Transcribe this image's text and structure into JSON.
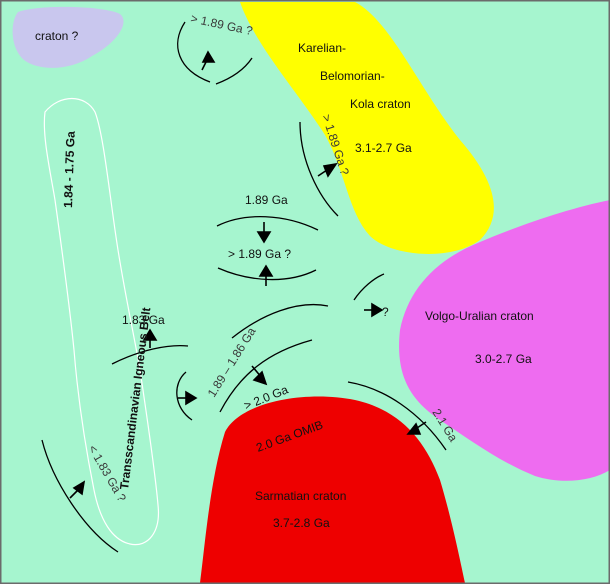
{
  "colors": {
    "background": "#a6f5cf",
    "frame": "#6b6b6b",
    "unknown_craton": "#c9c7ee",
    "karelian": "#ffff00",
    "volgo_uralian": "#ee6cf0",
    "sarmatian": "#ee0000",
    "tib_outline": "#ffffff",
    "text": "#111111"
  },
  "regions": {
    "unknown_craton": {
      "label": "craton ?"
    },
    "karelian": {
      "line1": "Karelian-",
      "line2": "Belomorian-",
      "line3": "Kola craton",
      "age": "3.1-2.7 Ga"
    },
    "volgo_uralian": {
      "name": "Volgo-Uralian craton",
      "age": "3.0-2.7 Ga"
    },
    "sarmatian": {
      "name": "Sarmatian craton",
      "age": "3.7-2.8 Ga",
      "omib": "2.0 Ga   OMIB"
    },
    "tib": {
      "name": "Transscandinavian Igneous Belt",
      "age": "1.84 - 1.75 Ga"
    }
  },
  "age_labels": {
    "top_arc": "> 1.89 Ga ?",
    "karelian_edge": "> 1.89 Ga ?",
    "center_upper": "1.89 Ga",
    "center_lower": "> 1.89 Ga ?",
    "left_1_83": "1.83 Ga",
    "diag_1_89_1_86": "1.89 – 1.86 Ga",
    "gt_2_0": "> 2.0 Ga",
    "volgo_q": "?",
    "sarm_2_1": "2.1 Ga",
    "lower_left": "< 1.83 Ga ?"
  }
}
